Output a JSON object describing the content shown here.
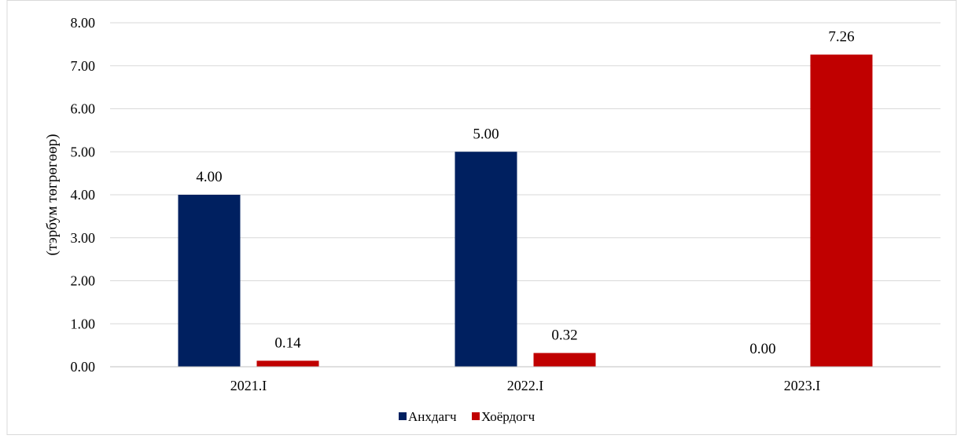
{
  "chart_data": {
    "type": "bar",
    "title": "",
    "xlabel": "",
    "ylabel": "(тэрбум төгрөгөөр)",
    "categories": [
      "2021.I",
      "2022.I",
      "2023.I"
    ],
    "series": [
      {
        "name": "Анхдагч",
        "color": "#002060",
        "values": [
          4.0,
          5.0,
          0.0
        ],
        "labels": [
          "4.00",
          "5.00",
          "0.00"
        ]
      },
      {
        "name": "Хоёрдогч",
        "color": "#C00000",
        "values": [
          0.14,
          0.32,
          7.26
        ],
        "labels": [
          "0.14",
          "0.32",
          "7.26"
        ]
      }
    ],
    "ylim": [
      0,
      8
    ],
    "yticks": [
      "0.00",
      "1.00",
      "2.00",
      "3.00",
      "4.00",
      "5.00",
      "6.00",
      "7.00",
      "8.00"
    ],
    "grid": true,
    "legend_position": "bottom"
  }
}
